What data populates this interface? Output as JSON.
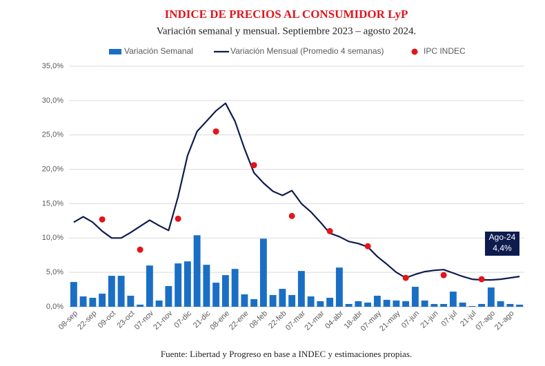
{
  "chart_data": {
    "type": "combo",
    "title": "INDICE DE PRECIOS AL CONSUMIDOR LyP",
    "subtitle": "Variación semanal y mensual. Septiembre 2023 – agosto 2024.",
    "source": "Fuente: Libertad y Progreso en base a INDEC y estimaciones propias.",
    "categories": [
      "08-sep",
      null,
      "22-sep",
      null,
      "09-oct",
      null,
      "23-oct",
      null,
      "07-nov",
      null,
      "21-nov",
      null,
      "07-dic",
      null,
      "21-dic",
      null,
      "08-ene",
      null,
      "22-ene",
      null,
      "08-feb",
      null,
      "22-feb",
      null,
      "07-mar",
      null,
      "21-mar",
      null,
      "04-abr",
      null,
      "18-abr",
      null,
      "07-may",
      null,
      "21-may",
      null,
      "07-jun",
      null,
      "21-jun",
      null,
      "07-jul",
      null,
      "21-jul",
      null,
      "07-ago",
      null,
      "21-ago",
      null
    ],
    "series": [
      {
        "name": "Variación Semanal",
        "type": "bar",
        "color": "#1a6fc4",
        "values": [
          3.6,
          1.5,
          1.3,
          1.9,
          4.5,
          4.5,
          1.6,
          0.3,
          6.0,
          0.9,
          3.0,
          6.3,
          6.6,
          10.4,
          6.1,
          3.5,
          4.6,
          5.5,
          1.8,
          1.1,
          9.9,
          1.7,
          2.6,
          1.7,
          5.2,
          1.5,
          0.8,
          1.3,
          5.7,
          0.4,
          0.8,
          0.6,
          1.6,
          1.0,
          0.9,
          0.8,
          2.9,
          0.9,
          0.4,
          0.4,
          2.2,
          0.6,
          0.1,
          0.4,
          2.8,
          0.8,
          0.4,
          0.3
        ]
      },
      {
        "name": "Variación Mensual (Promedio 4 semanas)",
        "type": "line",
        "color": "#0d1b4f",
        "values": [
          12.3,
          13.1,
          12.3,
          11.0,
          10.0,
          10.0,
          10.8,
          11.7,
          12.6,
          11.8,
          11.1,
          16.0,
          22.0,
          25.5,
          27.0,
          28.5,
          29.6,
          27.0,
          23.0,
          19.5,
          18.0,
          16.8,
          16.2,
          16.9,
          15.0,
          13.8,
          12.3,
          10.7,
          10.2,
          9.5,
          9.2,
          8.7,
          7.3,
          6.2,
          5.0,
          4.2,
          4.7,
          5.1,
          5.3,
          5.4,
          4.9,
          4.4,
          4.0,
          3.9,
          3.9,
          4.0,
          4.2,
          4.4
        ]
      },
      {
        "name": "IPC INDEC",
        "type": "scatter",
        "color": "#e3141b",
        "values": [
          null,
          null,
          null,
          12.7,
          null,
          null,
          null,
          8.3,
          null,
          null,
          null,
          12.8,
          null,
          null,
          null,
          25.5,
          null,
          null,
          null,
          20.6,
          null,
          null,
          null,
          13.2,
          null,
          null,
          null,
          11.0,
          null,
          null,
          null,
          8.8,
          null,
          null,
          null,
          4.2,
          null,
          null,
          null,
          4.6,
          null,
          null,
          null,
          4.0,
          null,
          null,
          null,
          null
        ]
      }
    ],
    "ylim": [
      0,
      35
    ],
    "yticks": [
      {
        "value": 0,
        "label": "0,0%"
      },
      {
        "value": 5,
        "label": "5,0%"
      },
      {
        "value": 10,
        "label": "10,0%"
      },
      {
        "value": 15,
        "label": "15,0%"
      },
      {
        "value": 20,
        "label": "20,0%"
      },
      {
        "value": 25,
        "label": "25,0%"
      },
      {
        "value": 30,
        "label": "30,0%"
      },
      {
        "value": 35,
        "label": "35,0%"
      }
    ],
    "grid": true,
    "annotation": {
      "lines": [
        "Ago-24",
        "4,4%"
      ],
      "color": "#0d1b4f"
    }
  }
}
